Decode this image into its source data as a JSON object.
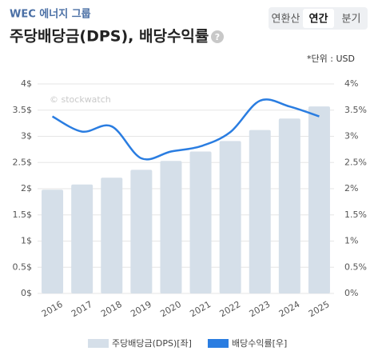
{
  "header": {
    "company": "WEC 에너지 그룹",
    "title": "주당배당금(DPS), 배당수익률",
    "help": "?",
    "tabs": [
      "연환산",
      "연간",
      "분기"
    ],
    "selected_tab": 1
  },
  "chart_data": {
    "type": "bar",
    "unit_note": "*단위 : USD",
    "watermark": "© stockwatch",
    "categories": [
      "2016",
      "2017",
      "2018",
      "2019",
      "2020",
      "2021",
      "2022",
      "2023",
      "2024",
      "2025"
    ],
    "series": [
      {
        "name": "주당배당금(DPS)[좌]",
        "type": "bar",
        "color": "#d5dfe9",
        "values": [
          1.98,
          2.08,
          2.21,
          2.36,
          2.53,
          2.71,
          2.91,
          3.12,
          3.34,
          3.57
        ]
      },
      {
        "name": "배당수익률[우]",
        "type": "line",
        "axis": "y2",
        "color": "#2a7de1",
        "values": [
          3.38,
          3.09,
          3.19,
          2.58,
          2.71,
          2.81,
          3.08,
          3.68,
          3.57,
          3.38
        ]
      }
    ],
    "ylim": [
      0,
      4
    ],
    "yticks": [
      {
        "value": 0,
        "label": "0$"
      },
      {
        "value": 0.5,
        "label": "0.5$"
      },
      {
        "value": 1,
        "label": "1$"
      },
      {
        "value": 1.5,
        "label": "1.5$"
      },
      {
        "value": 2,
        "label": "2$"
      },
      {
        "value": 2.5,
        "label": "2.5$"
      },
      {
        "value": 3,
        "label": "3$"
      },
      {
        "value": 3.5,
        "label": "3.5$"
      },
      {
        "value": 4,
        "label": "4$"
      }
    ],
    "y2lim": [
      0,
      4
    ],
    "y2ticks": [
      {
        "value": 0,
        "label": "0%"
      },
      {
        "value": 0.5,
        "label": "0.5%"
      },
      {
        "value": 1,
        "label": "1%"
      },
      {
        "value": 1.5,
        "label": "1.5%"
      },
      {
        "value": 2,
        "label": "2%"
      },
      {
        "value": 2.5,
        "label": "2.5%"
      },
      {
        "value": 3,
        "label": "3%"
      },
      {
        "value": 3.5,
        "label": "3.5%"
      },
      {
        "value": 4,
        "label": "4%"
      }
    ],
    "grid": true
  }
}
